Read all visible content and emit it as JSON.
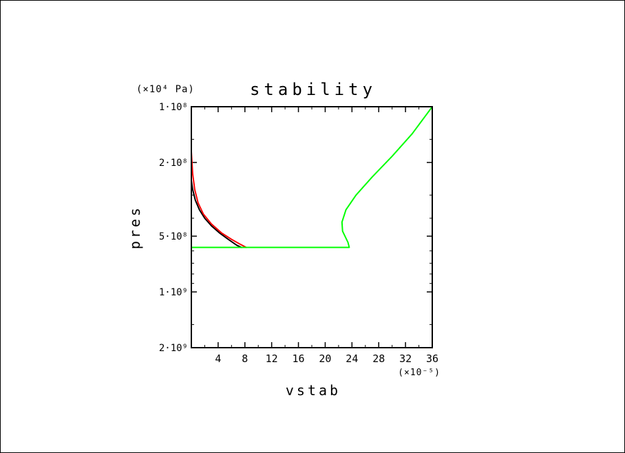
{
  "chart_data": {
    "type": "line",
    "title": "stability",
    "xlabel": "vstab",
    "ylabel": "pres",
    "x_multiplier": "(×10⁻⁵)",
    "y_unit": "(×10⁴ Pa)",
    "xlim": [
      0,
      36
    ],
    "ylim": [
      100000000,
      2000000000
    ],
    "y_scale": "log",
    "y_reversed": true,
    "grid": false,
    "x_ticks": [
      4,
      8,
      12,
      16,
      20,
      24,
      28,
      32,
      36
    ],
    "x_tick_labels": [
      "4",
      "8",
      "12",
      "16",
      "20",
      "24",
      "28",
      "32",
      "36"
    ],
    "y_ticks": [
      100000000,
      200000000,
      500000000,
      1000000000,
      2000000000
    ],
    "y_tick_labels": [
      "1·10⁸",
      "2·10⁸",
      "5·10⁸",
      "1·10⁹",
      "2·10⁹"
    ],
    "series": [
      {
        "color": "#000000",
        "points": [
          [
            0,
            250000000
          ],
          [
            0.2,
            280000000
          ],
          [
            0.6,
            320000000
          ],
          [
            1.2,
            360000000
          ],
          [
            2.0,
            400000000
          ],
          [
            3.0,
            440000000
          ],
          [
            4.2,
            480000000
          ],
          [
            5.5,
            520000000
          ],
          [
            6.8,
            560000000
          ],
          [
            7.5,
            575000000
          ]
        ]
      },
      {
        "color": "#ff0000",
        "points": [
          [
            0,
            100000000
          ],
          [
            0,
            175000000
          ],
          [
            0.2,
            230000000
          ],
          [
            0.5,
            280000000
          ],
          [
            1.0,
            330000000
          ],
          [
            1.8,
            380000000
          ],
          [
            3.0,
            430000000
          ],
          [
            4.5,
            480000000
          ],
          [
            6.0,
            520000000
          ],
          [
            7.2,
            550000000
          ],
          [
            8.2,
            575000000
          ]
        ]
      },
      {
        "color": "#00ff00",
        "points": [
          [
            0,
            2000000000
          ],
          [
            0,
            575000000
          ],
          [
            23.6,
            575000000
          ],
          [
            23.4,
            540000000
          ],
          [
            22.6,
            470000000
          ],
          [
            22.5,
            420000000
          ],
          [
            23.1,
            360000000
          ],
          [
            24.6,
            300000000
          ],
          [
            27.0,
            240000000
          ],
          [
            30.0,
            185000000
          ],
          [
            33.0,
            140000000
          ],
          [
            36,
            100000000
          ]
        ]
      }
    ]
  }
}
